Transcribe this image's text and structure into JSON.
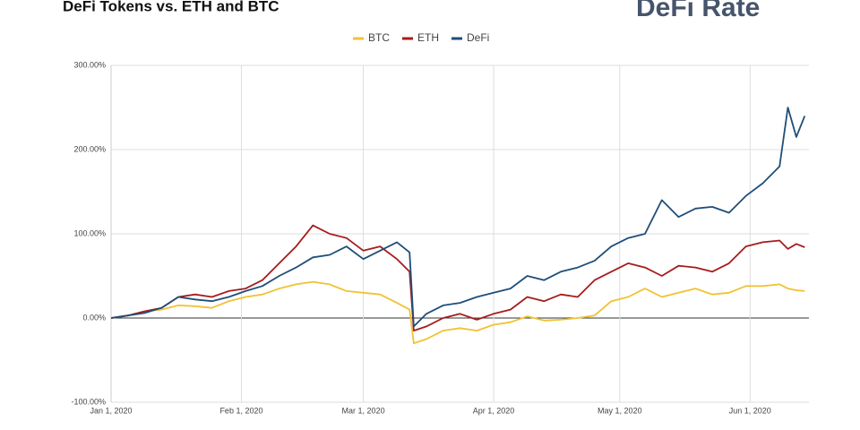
{
  "logo_text": "DeFi Rate",
  "chart_data": {
    "type": "line",
    "title": "DeFi Tokens vs. ETH and BTC",
    "x": [
      "2020-01-01",
      "2020-01-05",
      "2020-01-09",
      "2020-01-13",
      "2020-01-17",
      "2020-01-21",
      "2020-01-25",
      "2020-01-29",
      "2020-02-02",
      "2020-02-06",
      "2020-02-10",
      "2020-02-14",
      "2020-02-18",
      "2020-02-22",
      "2020-02-26",
      "2020-03-01",
      "2020-03-05",
      "2020-03-09",
      "2020-03-12",
      "2020-03-13",
      "2020-03-16",
      "2020-03-20",
      "2020-03-24",
      "2020-03-28",
      "2020-04-01",
      "2020-04-05",
      "2020-04-09",
      "2020-04-13",
      "2020-04-17",
      "2020-04-21",
      "2020-04-25",
      "2020-04-29",
      "2020-05-03",
      "2020-05-07",
      "2020-05-11",
      "2020-05-15",
      "2020-05-19",
      "2020-05-23",
      "2020-05-27",
      "2020-05-31",
      "2020-06-04",
      "2020-06-08",
      "2020-06-10",
      "2020-06-12",
      "2020-06-14"
    ],
    "series": [
      {
        "name": "BTC",
        "color": "#f1c232",
        "values": [
          0,
          3,
          8,
          10,
          15,
          14,
          12,
          20,
          25,
          28,
          35,
          40,
          43,
          40,
          32,
          30,
          28,
          18,
          10,
          -30,
          -25,
          -15,
          -12,
          -15,
          -8,
          -5,
          2,
          -3,
          -2,
          0,
          3,
          20,
          25,
          35,
          25,
          30,
          35,
          28,
          30,
          38,
          38,
          40,
          35,
          33,
          32
        ]
      },
      {
        "name": "ETH",
        "color": "#a61c1c",
        "values": [
          0,
          3,
          8,
          12,
          25,
          28,
          25,
          32,
          35,
          45,
          65,
          85,
          110,
          100,
          95,
          80,
          85,
          70,
          55,
          -15,
          -10,
          0,
          5,
          -2,
          5,
          10,
          25,
          20,
          28,
          25,
          45,
          55,
          65,
          60,
          50,
          62,
          60,
          55,
          65,
          85,
          90,
          92,
          82,
          88,
          84
        ]
      },
      {
        "name": "DeFi",
        "color": "#1f4e79",
        "values": [
          0,
          3,
          6,
          12,
          25,
          22,
          20,
          25,
          32,
          38,
          50,
          60,
          72,
          75,
          85,
          70,
          80,
          90,
          78,
          -10,
          5,
          15,
          18,
          25,
          30,
          35,
          50,
          45,
          55,
          60,
          68,
          85,
          95,
          100,
          140,
          120,
          130,
          132,
          125,
          145,
          160,
          180,
          250,
          215,
          240
        ]
      }
    ],
    "xlim": [
      "2020-01-01",
      "2020-06-15"
    ],
    "xticks": [
      {
        "value": "2020-01-01",
        "label": "Jan 1, 2020"
      },
      {
        "value": "2020-02-01",
        "label": "Feb 1, 2020"
      },
      {
        "value": "2020-03-01",
        "label": "Mar 1, 2020"
      },
      {
        "value": "2020-04-01",
        "label": "Apr 1, 2020"
      },
      {
        "value": "2020-05-01",
        "label": "May 1, 2020"
      },
      {
        "value": "2020-06-01",
        "label": "Jun 1, 2020"
      }
    ],
    "ylim": [
      -100,
      300
    ],
    "yticks": [
      {
        "value": -100,
        "label": "-100.00%"
      },
      {
        "value": 0,
        "label": "0.00%"
      },
      {
        "value": 100,
        "label": "100.00%"
      },
      {
        "value": 200,
        "label": "200.00%"
      },
      {
        "value": 300,
        "label": "300.00%"
      }
    ],
    "grid": true,
    "legend": "top"
  }
}
